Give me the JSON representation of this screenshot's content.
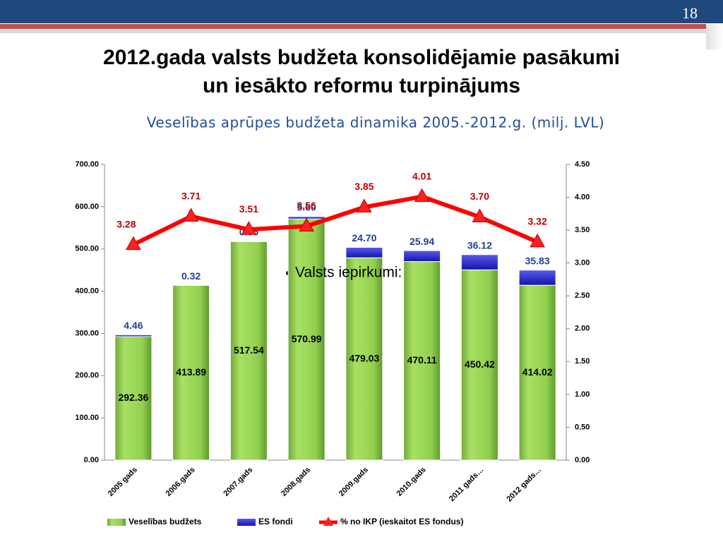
{
  "slide": {
    "page_number": "18",
    "title": [
      "2012.gada valsts budžeta konsolidējamie pasākumi",
      "un iesākto reformu turpinājums"
    ],
    "bullet": "Valsts iepirkumi:"
  },
  "chart_data": {
    "type": "bar",
    "title": "Veselības aprūpes budžeta dinamika 2005.-2012.g. (milj. LVL)",
    "stacked": true,
    "categories": [
      "2005 gads",
      "2006.gads",
      "2007.gads",
      "2008.gads",
      "2009.gads",
      "2010.gads",
      "2011 gads…",
      "2012 gads…"
    ],
    "series": [
      {
        "name": "Veselības budžets",
        "color": "#92d050",
        "values": [
          292.36,
          413.89,
          517.54,
          570.99,
          479.03,
          470.11,
          450.42,
          414.02
        ]
      },
      {
        "name": "ES fondi",
        "color": "#2b2bd8",
        "values": [
          4.46,
          0.32,
          0.55,
          5.6,
          24.7,
          25.94,
          36.12,
          35.83
        ],
        "value_labels": [
          "4.46",
          "0.32",
          "0.55",
          "5.60",
          "24.70",
          "25.94",
          "36.12",
          "35.83"
        ]
      },
      {
        "name": "% no IKP (ieskaitot ES fondus)",
        "type": "line",
        "axis": "y2",
        "color": "#ff0000",
        "values": [
          3.28,
          3.71,
          3.51,
          3.56,
          3.85,
          4.01,
          3.7,
          3.32
        ],
        "value_labels": [
          "3.28",
          "3.71",
          "3.51",
          "3.56",
          "3.85",
          "4.01",
          "3.70",
          "3.32"
        ]
      }
    ],
    "ylim": [
      0,
      700
    ],
    "yticks": [
      {
        "value": 0,
        "label": "0.00"
      },
      {
        "value": 100,
        "label": "100.00"
      },
      {
        "value": 200,
        "label": "200.00"
      },
      {
        "value": 300,
        "label": "300.00"
      },
      {
        "value": 400,
        "label": "400.00"
      },
      {
        "value": 500,
        "label": "500.00"
      },
      {
        "value": 600,
        "label": "600.00"
      },
      {
        "value": 700,
        "label": "700.00"
      }
    ],
    "y2lim": [
      0,
      4.5
    ],
    "y2ticks": [
      {
        "value": 0,
        "label": "0.00"
      },
      {
        "value": 0.5,
        "label": "0.50"
      },
      {
        "value": 1,
        "label": "1.00"
      },
      {
        "value": 1.5,
        "label": "1.50"
      },
      {
        "value": 2,
        "label": "2.00"
      },
      {
        "value": 2.5,
        "label": "2.50"
      },
      {
        "value": 3,
        "label": "3.00"
      },
      {
        "value": 3.5,
        "label": "3.50"
      },
      {
        "value": 4,
        "label": "4.00"
      },
      {
        "value": 4.5,
        "label": "4.50"
      }
    ],
    "grid": false,
    "legend": "bottom"
  }
}
